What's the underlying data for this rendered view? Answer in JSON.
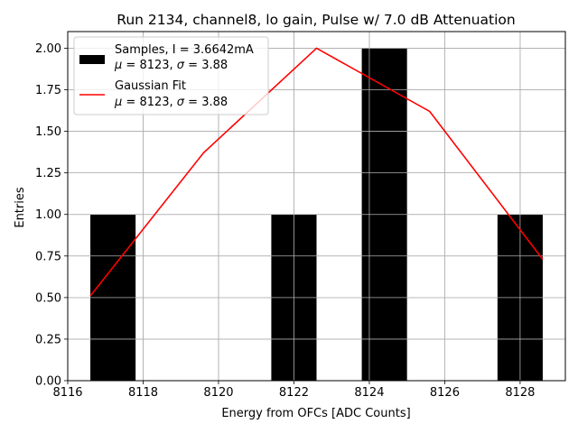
{
  "chart_data": {
    "type": "bar",
    "title": "Run 2134, channel8, lo gain, Pulse w/ 7.0 dB Attenuation",
    "xlabel": "Energy from OFCs [ADC Counts]",
    "ylabel": "Entries",
    "xlim": [
      8116,
      8129.2
    ],
    "ylim": [
      0,
      2.1
    ],
    "xticks": [
      8116,
      8118,
      8120,
      8122,
      8124,
      8126,
      8128
    ],
    "xtick_labels": [
      "8116",
      "8118",
      "8120",
      "8122",
      "8124",
      "8126",
      "8128"
    ],
    "yticks": [
      0,
      0.25,
      0.5,
      0.75,
      1.0,
      1.25,
      1.5,
      1.75,
      2.0
    ],
    "ytick_labels": [
      "0.00",
      "0.25",
      "0.50",
      "0.75",
      "1.00",
      "1.25",
      "1.50",
      "1.75",
      "2.00"
    ],
    "grid": true,
    "bars": [
      {
        "x_start": 8116.6,
        "x_end": 8117.8,
        "value": 1
      },
      {
        "x_start": 8121.4,
        "x_end": 8122.6,
        "value": 1
      },
      {
        "x_start": 8123.8,
        "x_end": 8125.0,
        "value": 2
      },
      {
        "x_start": 8127.4,
        "x_end": 8128.6,
        "value": 1
      }
    ],
    "fit_line": {
      "x": [
        8116.6,
        8119.6,
        8122.6,
        8125.6,
        8128.6
      ],
      "y": [
        0.51,
        1.37,
        2.0,
        1.62,
        0.73
      ],
      "color": "#ff0000"
    },
    "bar_color": "#000000",
    "legend": {
      "placement": "top-left",
      "entries": [
        {
          "kind": "bar",
          "label": "Samples, I = 3.6642mA",
          "stats": {
            "mu_symbol": "μ",
            "mu_text": " = 8123, ",
            "sigma_symbol": "σ",
            "sigma_text": " = 3.88"
          }
        },
        {
          "kind": "line",
          "label": "Gaussian Fit",
          "stats": {
            "mu_symbol": "μ",
            "mu_text": " = 8123, ",
            "sigma_symbol": "σ",
            "sigma_text": " = 3.88"
          }
        }
      ]
    }
  }
}
